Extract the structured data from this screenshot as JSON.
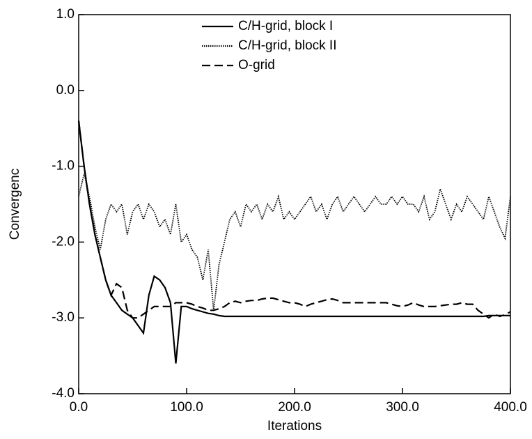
{
  "chart_data": {
    "type": "line",
    "xlabel": "Iterations",
    "ylabel": "Convergenc",
    "x": [
      0,
      5,
      10,
      15,
      20,
      25,
      30,
      35,
      40,
      45,
      50,
      55,
      60,
      65,
      70,
      75,
      80,
      85,
      90,
      95,
      100,
      105,
      110,
      115,
      120,
      125,
      130,
      135,
      140,
      145,
      150,
      155,
      160,
      165,
      170,
      175,
      180,
      185,
      190,
      195,
      200,
      205,
      210,
      215,
      220,
      225,
      230,
      235,
      240,
      245,
      250,
      255,
      260,
      265,
      270,
      275,
      280,
      285,
      290,
      295,
      300,
      305,
      310,
      315,
      320,
      325,
      330,
      335,
      340,
      345,
      350,
      355,
      360,
      365,
      370,
      375,
      380,
      385,
      390,
      395,
      400
    ],
    "series": [
      {
        "name": "C/H-grid, block I",
        "color": "#000000",
        "dash": "solid",
        "values": [
          -0.4,
          -1.0,
          -1.5,
          -1.9,
          -2.2,
          -2.5,
          -2.7,
          -2.8,
          -2.9,
          -2.95,
          -3.0,
          -3.1,
          -3.2,
          -2.7,
          -2.45,
          -2.5,
          -2.6,
          -2.8,
          -3.6,
          -2.85,
          -2.85,
          -2.88,
          -2.9,
          -2.92,
          -2.94,
          -2.95,
          -2.97,
          -2.98,
          -2.98,
          -2.98,
          -2.98,
          -2.98,
          -2.98,
          -2.98,
          -2.98,
          -2.98,
          -2.98,
          -2.98,
          -2.98,
          -2.98,
          -2.98,
          -2.98,
          -2.98,
          -2.98,
          -2.98,
          -2.98,
          -2.98,
          -2.98,
          -2.98,
          -2.98,
          -2.98,
          -2.98,
          -2.98,
          -2.98,
          -2.98,
          -2.98,
          -2.98,
          -2.98,
          -2.98,
          -2.98,
          -2.98,
          -2.98,
          -2.98,
          -2.98,
          -2.98,
          -2.98,
          -2.98,
          -2.98,
          -2.98,
          -2.98,
          -2.98,
          -2.98,
          -2.98,
          -2.98,
          -2.98,
          -2.98,
          -2.97,
          -2.97,
          -2.97,
          -2.97,
          -2.97
        ]
      },
      {
        "name": "C/H-grid, block II",
        "color": "#000000",
        "dash": "dotted",
        "values": [
          -1.4,
          -1.1,
          -1.4,
          -1.8,
          -2.1,
          -1.7,
          -1.5,
          -1.6,
          -1.5,
          -1.9,
          -1.6,
          -1.5,
          -1.7,
          -1.5,
          -1.6,
          -1.8,
          -1.7,
          -1.9,
          -1.5,
          -2.0,
          -1.9,
          -2.1,
          -2.2,
          -2.5,
          -2.1,
          -2.9,
          -2.3,
          -2.0,
          -1.7,
          -1.6,
          -1.8,
          -1.5,
          -1.6,
          -1.5,
          -1.7,
          -1.5,
          -1.6,
          -1.4,
          -1.7,
          -1.6,
          -1.7,
          -1.6,
          -1.5,
          -1.4,
          -1.6,
          -1.5,
          -1.7,
          -1.5,
          -1.4,
          -1.6,
          -1.5,
          -1.4,
          -1.5,
          -1.6,
          -1.5,
          -1.4,
          -1.5,
          -1.5,
          -1.4,
          -1.5,
          -1.4,
          -1.5,
          -1.5,
          -1.6,
          -1.4,
          -1.7,
          -1.6,
          -1.3,
          -1.5,
          -1.7,
          -1.5,
          -1.6,
          -1.4,
          -1.5,
          -1.6,
          -1.7,
          -1.4,
          -1.6,
          -1.8,
          -1.95,
          -1.4
        ]
      },
      {
        "name": "O-grid",
        "color": "#000000",
        "dash": "dashed",
        "values": [
          -0.4,
          -1.0,
          -1.5,
          -1.9,
          -2.2,
          -2.5,
          -2.7,
          -2.55,
          -2.6,
          -2.9,
          -3.0,
          -3.0,
          -2.95,
          -2.9,
          -2.85,
          -2.85,
          -2.85,
          -2.85,
          -2.8,
          -2.8,
          -2.8,
          -2.82,
          -2.85,
          -2.87,
          -2.9,
          -2.9,
          -2.88,
          -2.85,
          -2.8,
          -2.78,
          -2.8,
          -2.78,
          -2.77,
          -2.77,
          -2.75,
          -2.74,
          -2.74,
          -2.76,
          -2.78,
          -2.8,
          -2.8,
          -2.82,
          -2.85,
          -2.82,
          -2.8,
          -2.78,
          -2.76,
          -2.75,
          -2.77,
          -2.8,
          -2.8,
          -2.8,
          -2.8,
          -2.8,
          -2.8,
          -2.8,
          -2.8,
          -2.8,
          -2.82,
          -2.84,
          -2.85,
          -2.83,
          -2.8,
          -2.83,
          -2.85,
          -2.85,
          -2.85,
          -2.84,
          -2.83,
          -2.82,
          -2.82,
          -2.8,
          -2.82,
          -2.82,
          -2.9,
          -2.95,
          -3.0,
          -2.95,
          -2.98,
          -2.96,
          -2.92
        ]
      }
    ],
    "xlim": [
      0,
      400
    ],
    "xticks": [
      {
        "value": 0,
        "label": "0.0"
      },
      {
        "value": 100,
        "label": "100.0"
      },
      {
        "value": 200,
        "label": "200.0"
      },
      {
        "value": 300,
        "label": "300.0"
      },
      {
        "value": 400,
        "label": "400.0"
      }
    ],
    "ylim": [
      -4,
      1
    ],
    "yticks": [
      {
        "value": -4,
        "label": "-4.0"
      },
      {
        "value": -3,
        "label": "-3.0"
      },
      {
        "value": -2,
        "label": "-2.0"
      },
      {
        "value": -1,
        "label": "-1.0"
      },
      {
        "value": 0,
        "label": "0.0"
      },
      {
        "value": 1,
        "label": "1.0"
      }
    ],
    "grid": false,
    "legend": "upper center"
  }
}
